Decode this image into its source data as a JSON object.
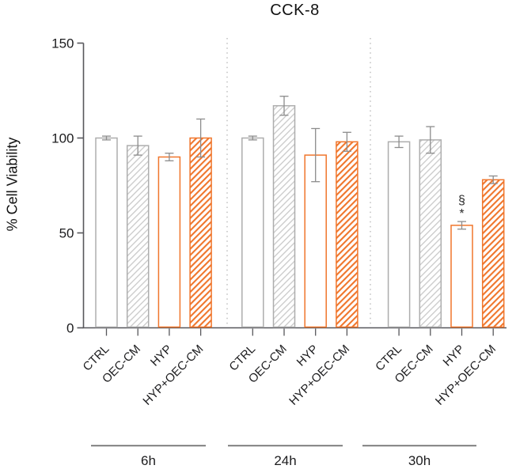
{
  "chart_data": {
    "type": "bar",
    "title": "CCK-8",
    "ylabel": "% Cell Viability",
    "ylim": [
      0,
      150
    ],
    "yticks": [
      0,
      50,
      100,
      150
    ],
    "legend": "none",
    "grid": false,
    "categories": [
      {
        "label": "CTRL",
        "fill": "plain",
        "color": "gray"
      },
      {
        "label": "OEC-CM",
        "fill": "hatch",
        "color": "gray"
      },
      {
        "label": "HYP",
        "fill": "plain",
        "color": "orange"
      },
      {
        "label": "HYP+OEC-CM",
        "fill": "hatch",
        "color": "orange"
      }
    ],
    "groups": [
      {
        "label": "6h",
        "values": [
          100,
          96,
          90,
          100
        ],
        "errors": [
          1,
          5,
          2,
          10
        ],
        "annotations": [
          null,
          null,
          null,
          null
        ]
      },
      {
        "label": "24h",
        "values": [
          100,
          117,
          91,
          98
        ],
        "errors": [
          1,
          5,
          14,
          5
        ],
        "annotations": [
          null,
          null,
          null,
          null
        ]
      },
      {
        "label": "30h",
        "values": [
          98,
          99,
          54,
          78
        ],
        "errors": [
          3,
          7,
          2,
          2
        ],
        "annotations": [
          null,
          null,
          [
            "§",
            "*"
          ],
          null
        ]
      }
    ],
    "colors": {
      "orange": "#F0762C",
      "gray_hatch": "#C9C9C9",
      "gray_outline": "#ADADAD",
      "error_bar": "#8C8C8C",
      "axis": "#57575B",
      "text": "#1D1D1F",
      "separator": "#BBBBBB",
      "bar_fill": "#FFFFFF"
    }
  }
}
